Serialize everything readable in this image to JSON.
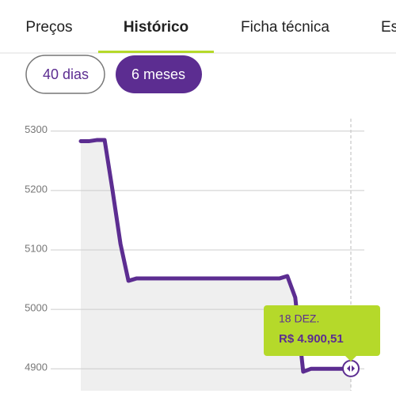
{
  "tabs": [
    "Preços",
    "Histórico",
    "Ficha técnica",
    "Es"
  ],
  "active_tab": 1,
  "range_buttons": [
    "40 dias",
    "6 meses"
  ],
  "active_range": 1,
  "chart_data": {
    "type": "line",
    "categories": [
      null,
      null,
      null,
      null,
      null,
      null,
      null,
      null,
      null,
      null,
      null,
      null,
      null,
      null,
      null,
      null,
      null,
      null,
      null,
      null,
      null,
      null,
      null,
      null,
      null,
      null,
      null,
      null,
      null,
      null,
      null,
      null,
      null,
      null,
      "18 DEZ."
    ],
    "values": [
      5283,
      5283,
      5285,
      5285,
      5200,
      5110,
      5048,
      5052,
      5052,
      5052,
      5052,
      5052,
      5052,
      5052,
      5052,
      5052,
      5052,
      5052,
      5052,
      5052,
      5052,
      5052,
      5052,
      5052,
      5052,
      5052,
      5056,
      5020,
      4895,
      4900,
      4900,
      4900,
      4900,
      4900,
      4900.51
    ],
    "value_labels": [
      null,
      null,
      null,
      null,
      null,
      null,
      null,
      null,
      null,
      null,
      null,
      null,
      null,
      null,
      null,
      null,
      null,
      null,
      null,
      null,
      null,
      null,
      null,
      null,
      null,
      null,
      null,
      null,
      null,
      null,
      null,
      null,
      null,
      null,
      "R$ 4.900,51"
    ],
    "color": "#5c2d91",
    "ylim": [
      4863,
      5321
    ],
    "yticks": [
      4900,
      5000,
      5100,
      5200,
      5300
    ],
    "grid": true
  }
}
